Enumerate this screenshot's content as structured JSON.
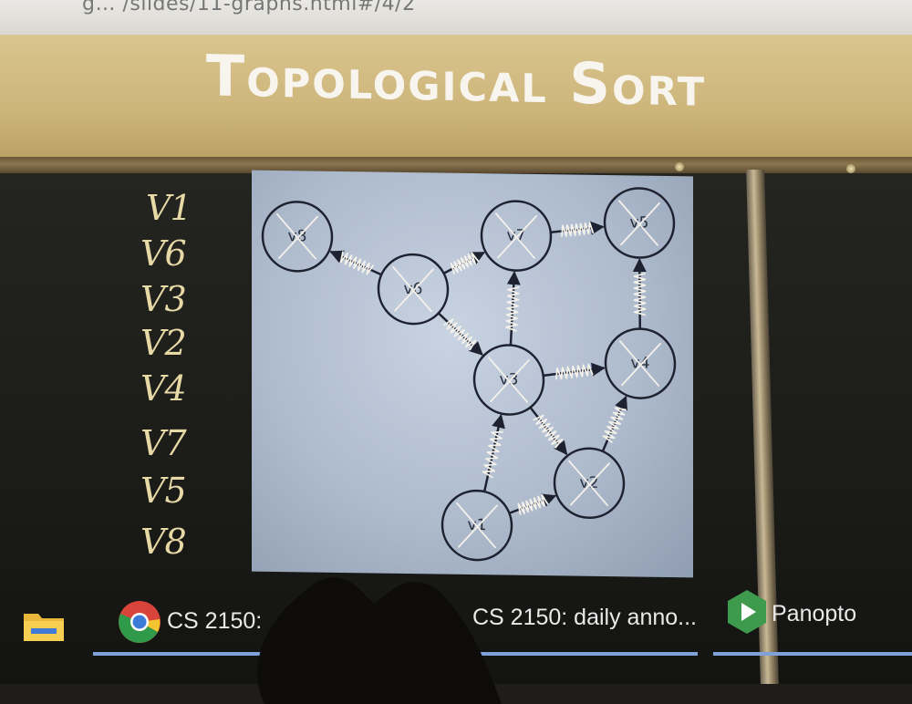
{
  "browser": {
    "url_fragment": "g… /slides/11-graphs.html#/4/2"
  },
  "slide": {
    "title": "Topological Sort",
    "nodes": [
      {
        "id": "v8",
        "label": "v8",
        "crossed": true
      },
      {
        "id": "v6",
        "label": "v6",
        "crossed": true
      },
      {
        "id": "v7",
        "label": "v7",
        "crossed": true
      },
      {
        "id": "v5",
        "label": "v5",
        "crossed": true
      },
      {
        "id": "v3",
        "label": "v3",
        "crossed": true
      },
      {
        "id": "v4",
        "label": "v4",
        "crossed": true
      },
      {
        "id": "v2",
        "label": "v2",
        "crossed": true
      },
      {
        "id": "v1",
        "label": "v1",
        "crossed": true
      }
    ],
    "edges": [
      {
        "from": "v6",
        "to": "v8"
      },
      {
        "from": "v6",
        "to": "v7"
      },
      {
        "from": "v6",
        "to": "v3"
      },
      {
        "from": "v7",
        "to": "v5"
      },
      {
        "from": "v3",
        "to": "v7"
      },
      {
        "from": "v3",
        "to": "v4"
      },
      {
        "from": "v4",
        "to": "v5"
      },
      {
        "from": "v3",
        "to": "v2"
      },
      {
        "from": "v1",
        "to": "v3"
      },
      {
        "from": "v1",
        "to": "v2"
      },
      {
        "from": "v2",
        "to": "v4"
      }
    ]
  },
  "handwritten_order": [
    "V1",
    "V6",
    "V3",
    "V2",
    "V4",
    "V7",
    "V5",
    "V8"
  ],
  "taskbar": {
    "items": [
      {
        "name": "file-explorer",
        "label": "",
        "icon": "folder-icon"
      },
      {
        "name": "chrome-window-1",
        "label": "CS 2150:",
        "icon": "chrome-icon"
      },
      {
        "name": "chrome-window-2",
        "label": "CS 2150: daily anno...",
        "icon": "chrome-icon"
      },
      {
        "name": "panopto",
        "label": "Panopto",
        "icon": "panopto-icon"
      }
    ]
  },
  "colors": {
    "title_band": "#cdb57a",
    "slide_bg": "#b4c1d2",
    "board": "#1e1d1a",
    "marker": "#e7d9a6",
    "scribble": "#f4f1ea"
  }
}
